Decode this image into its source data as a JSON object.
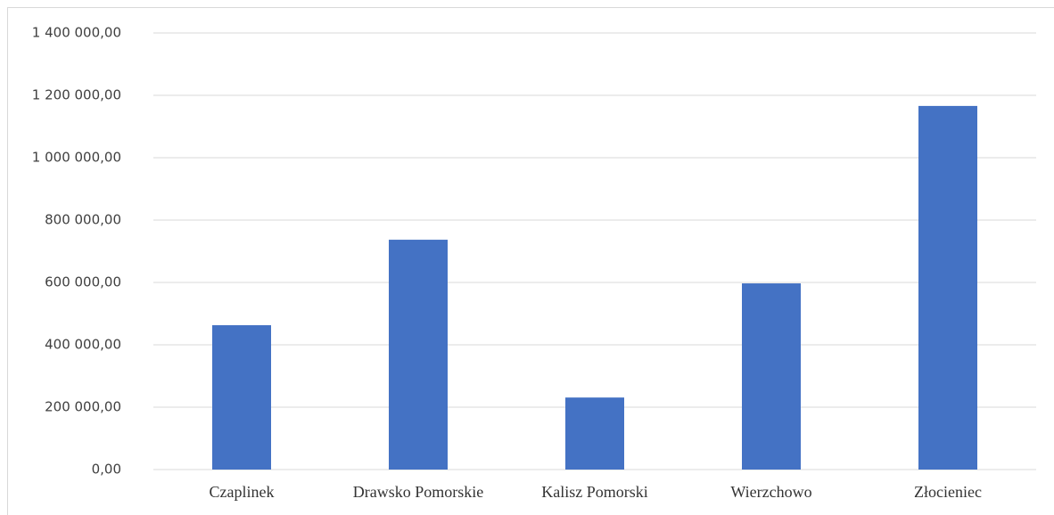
{
  "chart_data": {
    "type": "bar",
    "categories": [
      "Czaplinek",
      "Drawsko Pomorskie",
      "Kalisz Pomorski",
      "Wierzchowo",
      "Złocieniec"
    ],
    "values": [
      463000,
      737000,
      231000,
      597000,
      1166000
    ],
    "color": "#4472c4",
    "ylim": [
      0,
      1400000
    ],
    "yticks": [
      {
        "value": 0,
        "label": "0,00"
      },
      {
        "value": 200000,
        "label": "200 000,00"
      },
      {
        "value": 400000,
        "label": "400 000,00"
      },
      {
        "value": 600000,
        "label": "600 000,00"
      },
      {
        "value": 800000,
        "label": "800 000,00"
      },
      {
        "value": 1000000,
        "label": "1 000 000,00"
      },
      {
        "value": 1200000,
        "label": "1 200 000,00"
      },
      {
        "value": 1400000,
        "label": "1 400 000,00"
      }
    ],
    "grid": true
  }
}
